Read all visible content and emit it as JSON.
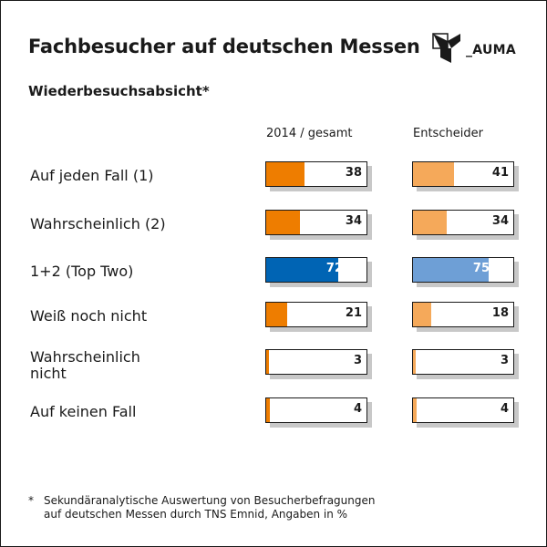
{
  "title": "Fachbesucher auf deutschen Messen",
  "subtitle": "Wiederbesuchsabsicht*",
  "logo": {
    "text": "_AUMA",
    "icon": "auma-logo-icon"
  },
  "footnote": {
    "marker": "*",
    "line1": "Sekundäranalytische Auswertung von Besucherbefragungen",
    "line2": "auf deutschen Messen durch TNS Emnid, Angaben in %"
  },
  "colors": {
    "orange": "#ee7d00",
    "light_orange": "#f5a95a",
    "blue": "#0064b4",
    "light_blue": "#6e9fd6"
  },
  "chart_data": {
    "type": "bar",
    "title": "Fachbesucher auf deutschen Messen",
    "subtitle": "Wiederbesuchsabsicht*",
    "categories": [
      "Auf jeden Fall (1)",
      "Wahrscheinlich (2)",
      "1+2 (Top Two)",
      "Weiß noch nicht",
      "Wahrscheinlich nicht",
      "Auf keinen Fall"
    ],
    "series": [
      {
        "name": "2014 / gesamt",
        "values": [
          38,
          34,
          72,
          21,
          3,
          4
        ]
      },
      {
        "name": "Entscheider",
        "values": [
          41,
          34,
          75,
          18,
          3,
          4
        ]
      }
    ],
    "ylim": [
      0,
      100
    ],
    "unit": "%",
    "grid": false
  }
}
